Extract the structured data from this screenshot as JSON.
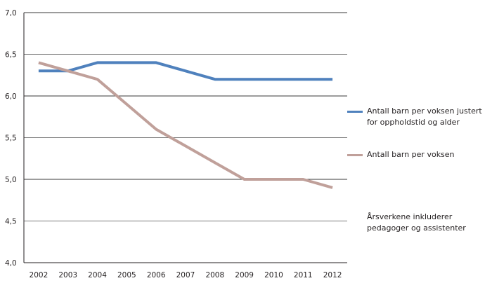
{
  "chart_data": {
    "type": "line",
    "title": "",
    "xlabel": "",
    "ylabel": "",
    "categories": [
      "2002",
      "2003",
      "2004",
      "2005",
      "2006",
      "2007",
      "2008",
      "2009",
      "2010",
      "2011",
      "2012"
    ],
    "ylim": [
      4.0,
      7.0
    ],
    "yticks": [
      4.0,
      4.5,
      5.0,
      5.5,
      6.0,
      6.5,
      7.0
    ],
    "ytick_labels": [
      "4,0",
      "4,5",
      "5,0",
      "5,5",
      "6,0",
      "6,5",
      "7,0"
    ],
    "grid": true,
    "legend_position": "right",
    "series": [
      {
        "name": "Antall barn per voksen justert for oppholdstid og alder",
        "color": "#4f81bd",
        "values": [
          6.3,
          6.3,
          6.4,
          6.4,
          6.4,
          6.3,
          6.2,
          6.2,
          6.2,
          6.2,
          6.2
        ]
      },
      {
        "name": "Antall barn per voksen",
        "color": "#c0a09a",
        "values": [
          6.4,
          6.3,
          6.2,
          5.9,
          5.6,
          5.4,
          5.2,
          5.0,
          5.0,
          5.0,
          4.9
        ]
      }
    ],
    "annotation": "Årsverkene inkluderer pedagoger og assistenter"
  }
}
